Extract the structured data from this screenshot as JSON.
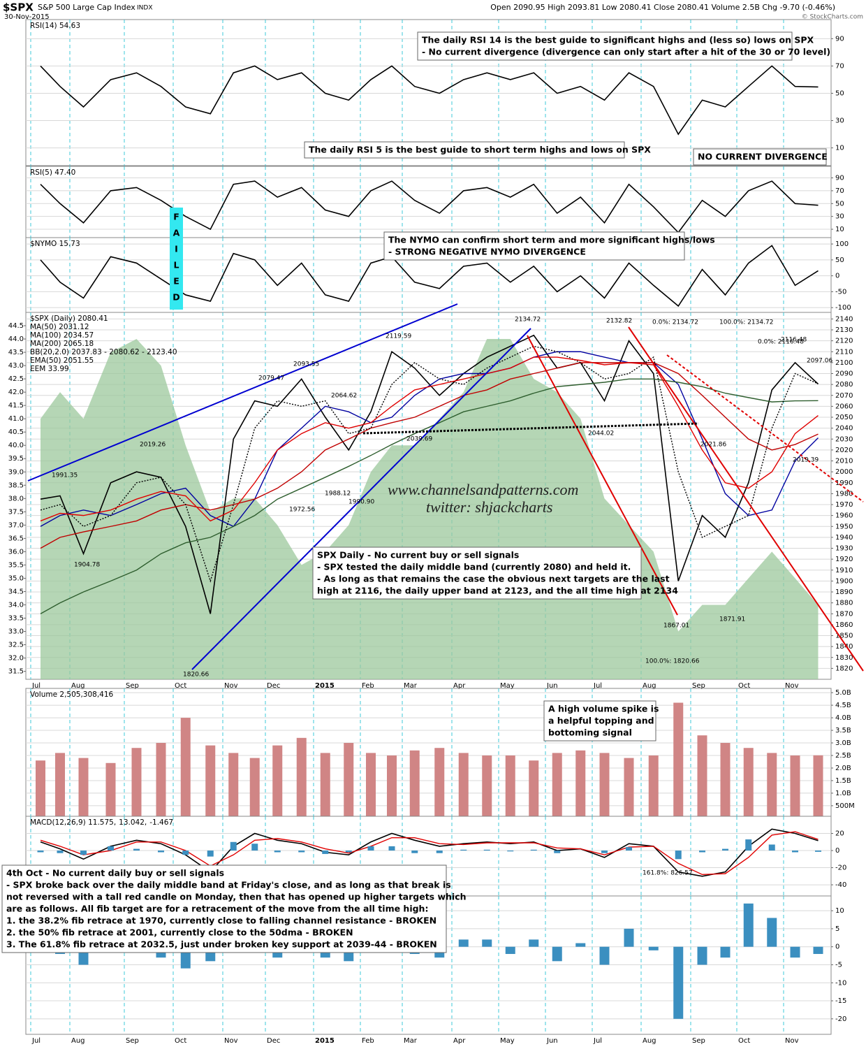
{
  "header": {
    "symbol": "$SPX",
    "name": "S&P 500 Large Cap Index",
    "exchange": "INDX",
    "date": "30-Nov-2015",
    "quote": "Open 2090.95  High 2093.81  Low 2080.41  Close 2080.41  Volume 2.5B  Chg -9.70 (-0.46%)",
    "credit": "© StockCharts.com"
  },
  "chart_data": [
    {
      "type": "line",
      "series": [
        {
          "name": "RSI(14) 54.63",
          "color": "#000000",
          "values": [
            70,
            55,
            40,
            60,
            65,
            55,
            40,
            35,
            65,
            70,
            60,
            65,
            50,
            45,
            60,
            70,
            55,
            50,
            60,
            65,
            60,
            65,
            50,
            55,
            45,
            65,
            55,
            20,
            45,
            40,
            55,
            70,
            55,
            54.63
          ]
        }
      ],
      "ylim": [
        -3,
        104
      ],
      "yticks": [
        10,
        30,
        50,
        70,
        90
      ],
      "grid": true,
      "annotations": [
        [
          "The daily RSI 14 is the best guide to significant highs and (less so) lows on SPX",
          "- No current divergence (divergence can only start after a hit of the 30 or 70 level)"
        ]
      ]
    },
    {
      "type": "line",
      "series": [
        {
          "name": "RSI(5) 47.40",
          "color": "#000000",
          "values": [
            80,
            50,
            20,
            70,
            75,
            55,
            30,
            10,
            80,
            85,
            60,
            75,
            40,
            30,
            70,
            85,
            55,
            35,
            70,
            75,
            60,
            80,
            35,
            60,
            20,
            80,
            45,
            5,
            55,
            30,
            70,
            85,
            50,
            47.4
          ]
        }
      ],
      "ylim": [
        -3,
        108
      ],
      "yticks": [
        10,
        30,
        50,
        70,
        90
      ],
      "grid": true,
      "annotations": [
        [
          "The daily RSI 5 is the best guide to short term highs and lows on SPX"
        ],
        [
          "NO CURRENT DIVERGENCE"
        ],
        [
          "F",
          "A",
          "I",
          "L",
          "E",
          "D"
        ]
      ]
    },
    {
      "type": "line",
      "series": [
        {
          "name": "$NYMO 15.73",
          "color": "#000000",
          "values": [
            50,
            -20,
            -70,
            60,
            40,
            -10,
            -60,
            -80,
            70,
            50,
            -30,
            40,
            -60,
            -80,
            40,
            60,
            -20,
            -40,
            30,
            40,
            -20,
            30,
            -50,
            0,
            -70,
            40,
            -30,
            -95,
            20,
            -60,
            40,
            95,
            -30,
            15.73
          ]
        }
      ],
      "ylim": [
        -115,
        120
      ],
      "yticks": [
        -100,
        -50,
        0,
        50,
        100
      ],
      "grid": true,
      "annotations": [
        [
          "The NYMO can confirm short term and more significant highs/lows",
          "- STRONG NEGATIVE NYMO DIVERGENCE"
        ]
      ]
    },
    {
      "type": "line",
      "categories": [
        "Jul",
        null,
        "Aug",
        null,
        "Sep",
        null,
        "Oct",
        null,
        "Nov",
        null,
        "Dec",
        null,
        "2015",
        null,
        "Feb",
        null,
        "Mar",
        null,
        "Apr",
        null,
        "May",
        null,
        "Jun",
        null,
        "Jul",
        null,
        "Aug",
        null,
        "Sep",
        null,
        "Oct",
        null,
        "Nov",
        null
      ],
      "series": [
        {
          "name": "$SPX (Daily) 2080.41",
          "color": "#000000",
          "values": [
            1975,
            1978,
            1925,
            1990,
            2000,
            1995,
            1950,
            1870,
            2030,
            2065,
            2060,
            2085,
            2050,
            2020,
            2055,
            2110,
            2095,
            2070,
            2090,
            2105,
            2115,
            2125,
            2095,
            2100,
            2065,
            2120,
            2090,
            1900,
            1960,
            1940,
            1990,
            2075,
            2100,
            2080.41
          ]
        },
        {
          "name": "MA(50) 2031.12",
          "color": "#0000a0",
          "values": [
            1950,
            1960,
            1965,
            1960,
            1970,
            1980,
            1985,
            1960,
            1950,
            1975,
            2020,
            2040,
            2060,
            2055,
            2045,
            2050,
            2070,
            2085,
            2090,
            2090,
            2095,
            2105,
            2110,
            2110,
            2105,
            2100,
            2100,
            2080,
            2030,
            1980,
            1960,
            1965,
            2010,
            2031.12
          ]
        },
        {
          "name": "MA(100) 2034.57",
          "color": "#c00000",
          "values": [
            1930,
            1940,
            1945,
            1950,
            1955,
            1965,
            1970,
            1965,
            1970,
            1975,
            1985,
            2000,
            2020,
            2030,
            2040,
            2045,
            2050,
            2060,
            2070,
            2075,
            2085,
            2090,
            2095,
            2100,
            2100,
            2100,
            2100,
            2090,
            2070,
            2050,
            2030,
            2020,
            2025,
            2034.57
          ]
        },
        {
          "name": "MA(200) 2065.18",
          "color": "#2e5e2e",
          "values": [
            1870,
            1880,
            1890,
            1900,
            1910,
            1925,
            1935,
            1940,
            1950,
            1960,
            1975,
            1985,
            1995,
            2005,
            2015,
            2025,
            2035,
            2045,
            2055,
            2060,
            2065,
            2072,
            2078,
            2080,
            2082,
            2085,
            2085,
            2082,
            2078,
            2072,
            2068,
            2064,
            2065,
            2065.18
          ]
        },
        {
          "name": "BB(20,2.0) 2037.83 - 2080.62 - 2123.40",
          "color": "#000000",
          "dash": true,
          "values": [
            1965,
            1970,
            1950,
            1960,
            1990,
            1995,
            1970,
            1900,
            1970,
            2040,
            2065,
            2060,
            2065,
            2035,
            2040,
            2080,
            2100,
            2085,
            2080,
            2095,
            2105,
            2115,
            2110,
            2100,
            2085,
            2090,
            2105,
            2000,
            1940,
            1950,
            1960,
            2040,
            2090,
            2080.62
          ]
        },
        {
          "name": "EMA(50) 2051.55",
          "color": "#e00000",
          "values": [
            1955,
            1962,
            1960,
            1965,
            1975,
            1982,
            1978,
            1955,
            1965,
            1990,
            2020,
            2035,
            2045,
            2040,
            2045,
            2060,
            2075,
            2080,
            2085,
            2090,
            2095,
            2105,
            2105,
            2102,
            2098,
            2100,
            2098,
            2060,
            2020,
            1990,
            1985,
            2000,
            2035,
            2051.55
          ]
        },
        {
          "name": "EEM 33.99",
          "color": "#9cc89c",
          "axis": "y2",
          "type": "area",
          "values": [
            41,
            42,
            41,
            43.5,
            44,
            43,
            40,
            37.5,
            38,
            38,
            37,
            35.5,
            36,
            37,
            39,
            40,
            40,
            41,
            42,
            44,
            44,
            42.5,
            42,
            41,
            38,
            37,
            36,
            33,
            34,
            34,
            35,
            36,
            35,
            33.99
          ]
        }
      ],
      "ylim": [
        1810,
        2146
      ],
      "yticks": [
        1820,
        1830,
        1840,
        1850,
        1860,
        1870,
        1880,
        1890,
        1900,
        1910,
        1920,
        1930,
        1940,
        1950,
        1960,
        1970,
        1980,
        1990,
        2000,
        2010,
        2020,
        2030,
        2040,
        2050,
        2060,
        2070,
        2080,
        2090,
        2100,
        2110,
        2120,
        2130,
        2140
      ],
      "y2lim": [
        31.2,
        45
      ],
      "y2ticks": [
        31.5,
        {
          "value": 32,
          "label": "32.0"
        },
        32.5,
        {
          "value": 33,
          "label": "33.0"
        },
        33.5,
        {
          "value": 34,
          "label": "34.0"
        },
        34.5,
        {
          "value": 35,
          "label": "35.0"
        },
        35.5,
        {
          "value": 36,
          "label": "36.0"
        },
        36.5,
        {
          "value": 37,
          "label": "37.0"
        },
        37.5,
        {
          "value": 38,
          "label": "38.0"
        },
        38.5,
        {
          "value": 39,
          "label": "39.0"
        },
        39.5,
        {
          "value": 40,
          "label": "40.0"
        },
        40.5,
        {
          "value": 41,
          "label": "41.0"
        },
        41.5,
        {
          "value": 42,
          "label": "42.0"
        },
        42.5,
        {
          "value": 43,
          "label": "43.0"
        },
        43.5,
        {
          "value": 44,
          "label": "44.0"
        },
        44.5
      ],
      "grid": true,
      "annotations": [
        "2134.72",
        "2132.82",
        "2119.59",
        "2093.55",
        "2079.47",
        "2064.62",
        "2019.26",
        "1991.35",
        "1904.78",
        "1820.66",
        "1972.56",
        "1988.12",
        "1990.90",
        "2039.69",
        "2044.02",
        "2021.86",
        "1867.01",
        "1871.91",
        "2116.48",
        "2097.06",
        "2019.39",
        "www.channelsandpatterns.com",
        "twitter: shjackcharts",
        [
          "SPX Daily - No current buy or sell signals",
          "- SPX tested the daily middle band (currently 2080) and held it.",
          "- As long as that remains the case the obvious next targets are the last",
          "high at 2116, the daily upper band at 2123, and the all time high at 2134"
        ],
        "0.0%: 2134.72",
        "100.0%: 2134.72",
        "100.0%: 1820.66",
        "0.0%: 2116.48"
      ]
    },
    {
      "type": "bar",
      "series": [
        {
          "name": "Volume 2,505,308,416",
          "color": "#d08585",
          "values": [
            2300000000,
            2600000000,
            2400000000,
            2200000000,
            2800000000,
            3000000000,
            4000000000,
            2900000000,
            2600000000,
            2400000000,
            2900000000,
            3200000000,
            2600000000,
            3000000000,
            2600000000,
            2500000000,
            2700000000,
            2800000000,
            2600000000,
            2500000000,
            2500000000,
            2300000000,
            2600000000,
            2700000000,
            2600000000,
            2400000000,
            2500000000,
            4600000000,
            3300000000,
            3000000000,
            2800000000,
            2600000000,
            2500000000,
            2505308416
          ]
        }
      ],
      "ylim": [
        80000000,
        5170000000
      ],
      "yticks": [
        {
          "value": 500000000,
          "label": "500M"
        },
        {
          "value": 1000000000,
          "label": "1.0B"
        },
        {
          "value": 1500000000,
          "label": "1.5B"
        },
        {
          "value": 2000000000,
          "label": "2.0B"
        },
        {
          "value": 2500000000,
          "label": "2.5B"
        },
        {
          "value": 3000000000,
          "label": "3.0B"
        },
        {
          "value": 3500000000,
          "label": "3.5B"
        },
        {
          "value": 4000000000,
          "label": "4.0B"
        },
        {
          "value": 4500000000,
          "label": "4.5B"
        },
        {
          "value": 5000000000,
          "label": "5.0B"
        }
      ],
      "grid": true,
      "annotations": [
        [
          "A high volume spike is",
          "a helpful topping and",
          "bottoming signal"
        ]
      ]
    },
    {
      "type": "line",
      "series": [
        {
          "name": "MACD(12,26,9) 11.575,",
          "color": "#000000",
          "values": [
            10,
            2,
            -10,
            5,
            12,
            8,
            -5,
            -25,
            5,
            20,
            12,
            8,
            -2,
            -5,
            10,
            20,
            12,
            5,
            8,
            10,
            8,
            10,
            0,
            2,
            -8,
            8,
            5,
            -25,
            -30,
            -25,
            5,
            25,
            20,
            11.575
          ]
        },
        {
          "name": "13.042,",
          "color": "#e00000",
          "values": [
            12,
            5,
            -5,
            0,
            10,
            10,
            0,
            -18,
            -5,
            12,
            14,
            10,
            2,
            -3,
            5,
            15,
            15,
            8,
            7,
            9,
            9,
            9,
            3,
            2,
            -5,
            4,
            5,
            -15,
            -28,
            -27,
            -8,
            18,
            22,
            13.042
          ]
        },
        {
          "name": "-1.467",
          "color": "#3b8fc0",
          "type": "bar",
          "values": [
            -2,
            -3,
            -5,
            5,
            2,
            -2,
            -5,
            -7,
            10,
            8,
            -2,
            -2,
            -4,
            -2,
            5,
            5,
            -3,
            -3,
            1,
            1,
            -1,
            1,
            -3,
            0,
            -3,
            4,
            0,
            -10,
            -2,
            2,
            13,
            7,
            -2,
            -1.467
          ]
        }
      ],
      "ylim": [
        -53,
        40
      ],
      "yticks": [
        -40,
        -20,
        0,
        20
      ],
      "grid": true,
      "annotations": [
        [
          "4th Oct - No current daily buy or sell signals",
          "- SPX broke back over the daily middle band at Friday's close, and as long as that break is",
          "not reversed with a tall red candle on Monday, then that has opened up higher targets which",
          "are as follows. All fib target are for a retracement of the move from the all time high:",
          "1. the 38.2% fib retrace at 1970, currently close to falling channel resistance - BROKEN",
          "2. the 50% fib retrace at 2001, currently close to the 50dma - BROKEN",
          "3. The 61.8% fib retrace at 2032.5, just under broken key support at 2039-44 - BROKEN"
        ],
        "161.8%: 826.57"
      ]
    },
    {
      "type": "bar",
      "categories": [
        "Jul",
        null,
        "Aug",
        null,
        "Sep",
        null,
        "Oct",
        null,
        "Nov",
        null,
        "Dec",
        null,
        "2015",
        null,
        "Feb",
        null,
        "Mar",
        null,
        "Apr",
        null,
        "May",
        null,
        "Jun",
        null,
        "Jul",
        null,
        "Aug",
        null,
        "Sep",
        null,
        "Oct",
        null,
        "Nov",
        null
      ],
      "series": [
        {
          "color": "#3b8fc0",
          "values": [
            3,
            -2,
            -5,
            6,
            3,
            -3,
            -6,
            -4,
            10,
            4,
            -3,
            2,
            -3,
            -4,
            6,
            7,
            -2,
            -3,
            2,
            2,
            -2,
            2,
            -4,
            1,
            -5,
            5,
            -1,
            -20,
            -5,
            -3,
            12,
            8,
            -3,
            -2
          ]
        }
      ],
      "ylim": [
        -24.3,
        14.1
      ],
      "yticks": [
        -20,
        -15,
        -10,
        -5,
        0,
        5,
        10
      ],
      "grid": true
    }
  ]
}
